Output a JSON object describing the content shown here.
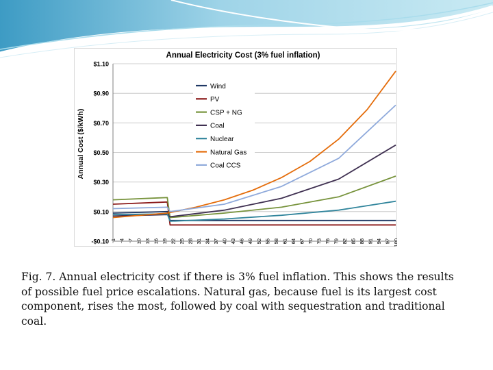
{
  "chart_data": {
    "type": "line",
    "title": "Annual Electricity Cost (3% fuel inflation)",
    "xlabel": "",
    "ylabel": "Annual Cost ($/kWh)",
    "ylim": [
      -0.1,
      1.1
    ],
    "xlim": [
      1,
      100
    ],
    "y_ticks": [
      -0.1,
      0.1,
      0.3,
      0.5,
      0.7,
      0.9,
      1.1
    ],
    "y_tick_labels": [
      "-$0.10",
      "$0.10",
      "$0.30",
      "$0.50",
      "$0.70",
      "$0.90",
      "$1.10"
    ],
    "x_tick_labels": [
      "1",
      "4",
      "7",
      "10",
      "13",
      "16",
      "19",
      "22",
      "25",
      "28",
      "31",
      "34",
      "37",
      "40",
      "43",
      "46",
      "49",
      "52",
      "55",
      "58",
      "61",
      "64",
      "67",
      "70",
      "73",
      "76",
      "79",
      "82",
      "85",
      "88",
      "91",
      "94",
      "97",
      "100"
    ],
    "grid": "horizontal",
    "legend_position": "upper-left",
    "series": [
      {
        "name": "Wind",
        "color": "#1f3864",
        "points": [
          [
            1,
            0.09
          ],
          [
            20,
            0.1
          ],
          [
            21,
            0.04
          ],
          [
            100,
            0.04
          ]
        ]
      },
      {
        "name": "PV",
        "color": "#8b1a1a",
        "points": [
          [
            1,
            0.15
          ],
          [
            20,
            0.165
          ],
          [
            21,
            0.01
          ],
          [
            100,
            0.01
          ]
        ]
      },
      {
        "name": "CSP + NG",
        "color": "#77933c",
        "points": [
          [
            1,
            0.18
          ],
          [
            20,
            0.195
          ],
          [
            21,
            0.06
          ],
          [
            40,
            0.09
          ],
          [
            60,
            0.13
          ],
          [
            80,
            0.2
          ],
          [
            100,
            0.34
          ]
        ]
      },
      {
        "name": "Coal",
        "color": "#403152",
        "points": [
          [
            1,
            0.07
          ],
          [
            20,
            0.08
          ],
          [
            21,
            0.065
          ],
          [
            40,
            0.11
          ],
          [
            60,
            0.19
          ],
          [
            80,
            0.32
          ],
          [
            100,
            0.55
          ]
        ]
      },
      {
        "name": "Nuclear",
        "color": "#31859c",
        "points": [
          [
            1,
            0.08
          ],
          [
            20,
            0.085
          ],
          [
            21,
            0.035
          ],
          [
            40,
            0.05
          ],
          [
            60,
            0.075
          ],
          [
            80,
            0.11
          ],
          [
            100,
            0.17
          ]
        ]
      },
      {
        "name": "Natural Gas",
        "color": "#e46c0a",
        "points": [
          [
            1,
            0.06
          ],
          [
            20,
            0.09
          ],
          [
            30,
            0.13
          ],
          [
            40,
            0.18
          ],
          [
            50,
            0.245
          ],
          [
            60,
            0.33
          ],
          [
            70,
            0.44
          ],
          [
            80,
            0.59
          ],
          [
            90,
            0.79
          ],
          [
            100,
            1.05
          ]
        ]
      },
      {
        "name": "Coal CCS",
        "color": "#8ea9db",
        "points": [
          [
            1,
            0.12
          ],
          [
            20,
            0.13
          ],
          [
            21,
            0.1
          ],
          [
            40,
            0.15
          ],
          [
            60,
            0.27
          ],
          [
            80,
            0.46
          ],
          [
            100,
            0.82
          ]
        ]
      }
    ]
  },
  "caption": "Fig. 7. Annual electricity cost if there is 3% fuel inflation.  This shows the results of possible fuel price escalations.  Natural gas, because fuel is its largest cost component, rises the most, followed by coal with sequestration and traditional coal."
}
